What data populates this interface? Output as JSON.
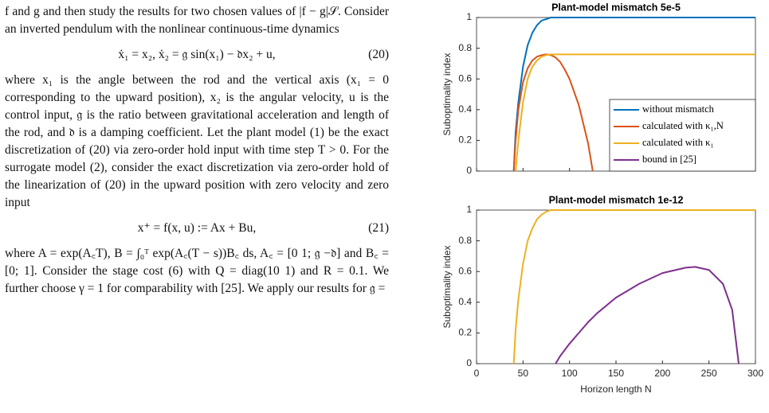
{
  "document": {
    "p1": "f and g and then study the results for two chosen values of |f − g|𝒮. Consider an inverted pendulum with the nonlinear continuous-time dynamics",
    "eq20": {
      "text": "ẋ₁ = x₂,    ẋ₂ = 𝔤 sin(x₁) − 𝔡x₂ + u,",
      "number": "(20)"
    },
    "p2": "where x₁ is the angle between the rod and the vertical axis (x₁ = 0 corresponding to the upward position), x₂ is the angular velocity, u is the control input, 𝔤 is the ratio between gravitational acceleration and length of the rod, and 𝔡 is a damping coefficient. Let the plant model (1) be the exact discretization of (20) via zero-order hold input with time step T > 0. For the surrogate model (2), consider the exact discretization via zero-order hold of the linearization of (20) in the upward position with zero velocity and zero input",
    "eq21": {
      "text": "x⁺ = f(x, u) := Ax + Bu,",
      "number": "(21)"
    },
    "p3": "where A = exp(A꜀T), B = ∫₀ᵀ exp(A꜀(T − s))B꜀ ds, A꜀ = [0 1; 𝔤 −𝔡] and B꜀ = [0; 1]. Consider the stage cost (6) with Q = diag(10 1) and R = 0.1. We further choose γ = 1 for comparability with [25]. We apply our results for 𝔤 ="
  },
  "chart_data": [
    {
      "type": "line",
      "title": "Plant-model mismatch 5e-5",
      "ylabel": "Suboptimality index",
      "xlim": [
        0,
        300
      ],
      "ylim": [
        0,
        1
      ],
      "xticks": [
        0,
        50,
        100,
        150,
        200,
        250,
        300
      ],
      "xtick_labels": false,
      "yticks": [
        0,
        0.2,
        0.4,
        0.6,
        0.8,
        1
      ],
      "legend": "lower right",
      "x": [
        40,
        42,
        45,
        50,
        55,
        60,
        65,
        70,
        75,
        80,
        85,
        90,
        95,
        100,
        110,
        120,
        125,
        130,
        150,
        175,
        200,
        225,
        235,
        250,
        265,
        275,
        282,
        290,
        300
      ],
      "series": [
        {
          "name": "without mismatch",
          "color": "#0072bd",
          "values": [
            0,
            0.25,
            0.45,
            0.68,
            0.82,
            0.9,
            0.95,
            0.98,
            0.99,
            1,
            1,
            1,
            1,
            1,
            1,
            1,
            1,
            1,
            1,
            1,
            1,
            1,
            1,
            1,
            1,
            1,
            1,
            1,
            1
          ]
        },
        {
          "name": "calculated with κ₁,N",
          "color": "#d95319",
          "values": [
            0,
            0.2,
            0.4,
            0.58,
            0.67,
            0.72,
            0.745,
            0.755,
            0.76,
            0.755,
            0.74,
            0.71,
            0.66,
            0.6,
            0.43,
            0.18,
            0,
            null,
            null,
            null,
            null,
            null,
            null,
            null,
            null,
            null,
            null,
            null,
            null
          ]
        },
        {
          "name": "calculated with κ₁",
          "color": "#edb120",
          "values": [
            null,
            0,
            0.2,
            0.45,
            0.6,
            0.68,
            0.72,
            0.745,
            0.755,
            0.76,
            0.76,
            0.76,
            0.76,
            0.76,
            0.76,
            0.76,
            0.76,
            0.76,
            0.76,
            0.76,
            0.76,
            0.76,
            0.76,
            0.76,
            0.76,
            0.76,
            0.76,
            0.76,
            0.76
          ]
        },
        {
          "name": "bound in [25]",
          "color": "#7e2f8e",
          "values": [
            null,
            null,
            null,
            null,
            null,
            null,
            null,
            null,
            null,
            null,
            null,
            null,
            null,
            null,
            null,
            null,
            null,
            null,
            null,
            null,
            null,
            null,
            null,
            null,
            null,
            null,
            null,
            null,
            null
          ]
        }
      ]
    },
    {
      "type": "line",
      "title": "Plant-model mismatch 1e-12",
      "ylabel": "Suboptimality index",
      "xlabel": "Horizon length N",
      "xlim": [
        0,
        300
      ],
      "ylim": [
        0,
        1
      ],
      "xticks": [
        0,
        50,
        100,
        150,
        200,
        250,
        300
      ],
      "xtick_labels": true,
      "yticks": [
        0,
        0.2,
        0.4,
        0.6,
        0.8,
        1
      ],
      "x": [
        40,
        42,
        45,
        50,
        55,
        60,
        65,
        70,
        75,
        80,
        85,
        90,
        95,
        100,
        110,
        120,
        125,
        130,
        150,
        175,
        200,
        225,
        235,
        250,
        265,
        275,
        282,
        290,
        300
      ],
      "series": [
        {
          "color": "#edb120",
          "values": [
            0,
            0.22,
            0.42,
            0.65,
            0.8,
            0.88,
            0.94,
            0.97,
            0.99,
            1,
            1,
            1,
            1,
            1,
            1,
            1,
            1,
            1,
            1,
            1,
            1,
            1,
            1,
            1,
            1,
            1,
            1,
            1,
            1
          ]
        },
        {
          "color": "#7e2f8e",
          "values": [
            null,
            null,
            null,
            null,
            null,
            null,
            null,
            null,
            null,
            null,
            0,
            0.05,
            0.09,
            0.13,
            0.2,
            0.27,
            0.3,
            0.33,
            0.43,
            0.52,
            0.59,
            0.625,
            0.63,
            0.61,
            0.52,
            0.35,
            0,
            null,
            null
          ]
        }
      ]
    }
  ]
}
